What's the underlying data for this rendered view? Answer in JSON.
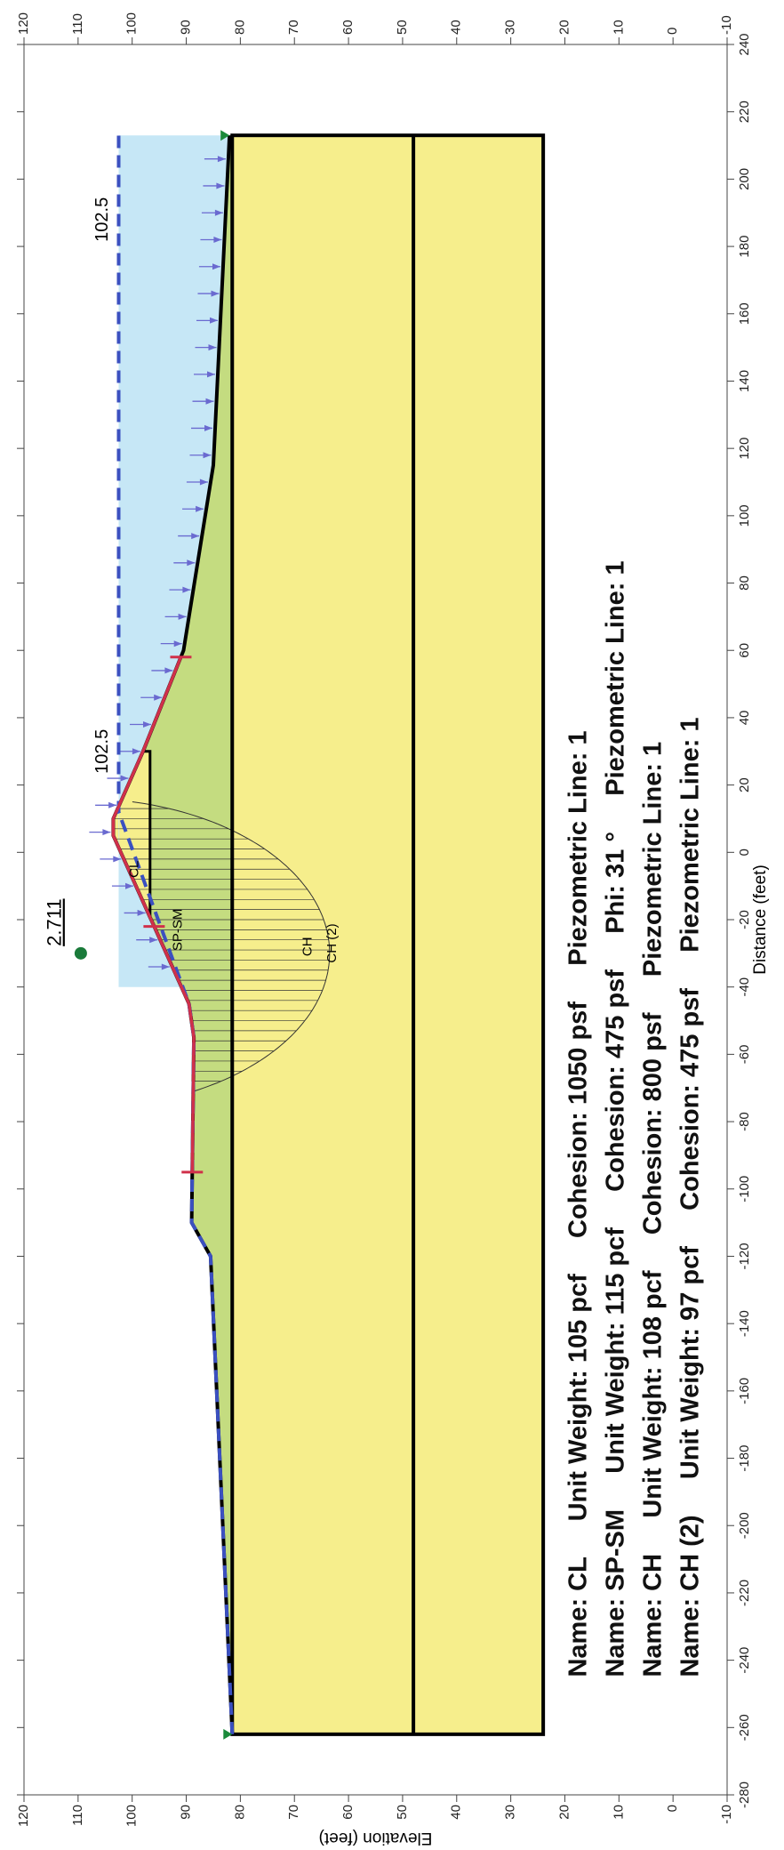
{
  "chart_data": {
    "type": "slope",
    "xlabel": "Distance (feet)",
    "ylabel": "Elevation (feet)",
    "xlim": [
      -280,
      240
    ],
    "ylim": [
      -10,
      120
    ],
    "xticks": [
      -280,
      -260,
      -240,
      -220,
      -200,
      -180,
      -160,
      -140,
      -120,
      -100,
      -80,
      -60,
      -40,
      -20,
      0,
      20,
      40,
      60,
      80,
      100,
      120,
      140,
      160,
      180,
      200,
      220,
      240
    ],
    "yticks": [
      -10,
      0,
      10,
      20,
      30,
      40,
      50,
      60,
      70,
      80,
      90,
      100,
      110,
      120
    ],
    "x_extent": [
      -262,
      213
    ],
    "bottom": 24,
    "layer_boundaries": [
      81.5,
      48
    ],
    "cl_base": 96.7,
    "cl_right": 30,
    "ground": {
      "x": [
        -262,
        -120,
        -110,
        -55,
        -45,
        5,
        10,
        30,
        60,
        115,
        213
      ],
      "y": [
        81.5,
        85.5,
        89,
        88.6,
        89.5,
        103.5,
        103.5,
        98,
        90.5,
        85,
        82
      ]
    },
    "piezometric": {
      "x": [
        -262,
        -120,
        -110,
        -55,
        -45,
        12,
        213
      ],
      "y": [
        81.5,
        85.5,
        89,
        88.6,
        89.5,
        102.5,
        102.5
      ]
    },
    "water_level": 102.5,
    "circle": {
      "center": [
        -30,
        109.5
      ],
      "radius": 46
    },
    "factor_of_safety": 2.711,
    "search_points": [
      -95,
      -22,
      58
    ],
    "regions": [
      "CL",
      "SP-SM",
      "CH",
      "CH (2)"
    ],
    "legend": [
      "Name: CL     Unit Weight: 105 pcf     Cohesion: 1050 psf     Piezometric Line: 1",
      "Name: SP-SM     Unit Weight: 115 pcf     Cohesion: 475 psf     Phi: 31 °     Piezometric Line: 1",
      "Name: CH     Unit Weight: 108 pcf     Cohesion: 800 psf     Piezometric Line: 1",
      "Name: CH (2)     Unit Weight: 97 pcf     Cohesion: 475 psf     Piezometric Line: 1"
    ]
  }
}
